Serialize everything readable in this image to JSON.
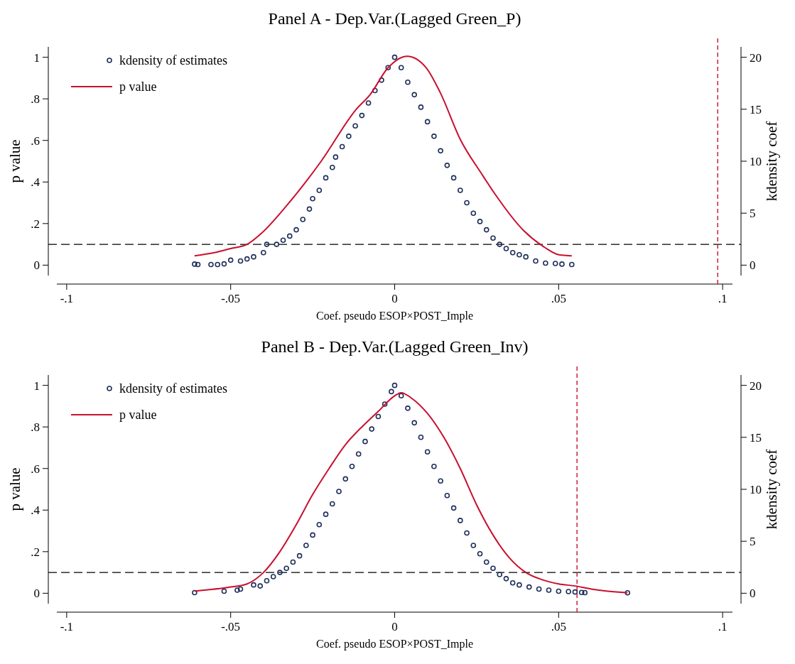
{
  "chart_data": [
    {
      "type": "scatter",
      "title": "Panel A - Dep.Var.(Lagged Green_P)",
      "xlabel": "Coef. pseudo ESOP×POST_Imple",
      "ylabel": "p value",
      "y2label": "kdensity coef",
      "xlim": [
        -0.103,
        0.103
      ],
      "xticks": [
        {
          "value": -0.1,
          "label": "-.1"
        },
        {
          "value": -0.05,
          "label": "-.05"
        },
        0,
        {
          "value": 0.05,
          "label": ".05"
        },
        {
          "value": 0.1,
          "label": ".1"
        }
      ],
      "ylim": [
        -0.05,
        1.05
      ],
      "yticks": [
        {
          "value": 0,
          "label": "0"
        },
        {
          "value": 0.2,
          "label": ".2"
        },
        {
          "value": 0.4,
          "label": ".4"
        },
        {
          "value": 0.6,
          "label": ".6"
        },
        {
          "value": 0.8,
          "label": ".8"
        },
        {
          "value": 1,
          "label": "1"
        }
      ],
      "y2lim": [
        -1,
        21
      ],
      "y2ticks": [
        {
          "value": 0,
          "label": "0"
        },
        5,
        10,
        15,
        20
      ],
      "grid": false,
      "legend": "top left",
      "series": [
        {
          "name": "kdensity of estimates",
          "color": "#1f2f5a",
          "marker": "circle",
          "x": [
            -0.061,
            -0.06,
            -0.056,
            -0.054,
            -0.052,
            -0.05,
            -0.047,
            -0.045,
            -0.043,
            -0.04,
            -0.039,
            -0.036,
            -0.034,
            -0.032,
            -0.03,
            -0.028,
            -0.026,
            -0.025,
            -0.023,
            -0.021,
            -0.019,
            -0.018,
            -0.016,
            -0.014,
            -0.012,
            -0.01,
            -0.008,
            -0.006,
            -0.004,
            -0.002,
            0,
            0.002,
            0.004,
            0.006,
            0.008,
            0.01,
            0.012,
            0.014,
            0.016,
            0.018,
            0.02,
            0.022,
            0.024,
            0.026,
            0.028,
            0.03,
            0.032,
            0.034,
            0.036,
            0.038,
            0.04,
            0.043,
            0.046,
            0.049,
            0.051,
            0.054
          ],
          "values": [
            0.005,
            0.003,
            0.003,
            0.003,
            0.006,
            0.024,
            0.02,
            0.03,
            0.04,
            0.06,
            0.1,
            0.1,
            0.12,
            0.14,
            0.17,
            0.22,
            0.27,
            0.32,
            0.36,
            0.42,
            0.47,
            0.52,
            0.57,
            0.62,
            0.67,
            0.72,
            0.78,
            0.84,
            0.89,
            0.95,
            1,
            0.95,
            0.88,
            0.82,
            0.76,
            0.69,
            0.62,
            0.55,
            0.48,
            0.42,
            0.36,
            0.3,
            0.25,
            0.21,
            0.17,
            0.13,
            0.1,
            0.08,
            0.06,
            0.05,
            0.04,
            0.02,
            0.01,
            0.008,
            0.005,
            0.003
          ]
        },
        {
          "type": "line",
          "axis": "y2",
          "name": "p value",
          "color": "#c8102e",
          "line_style": "solid",
          "x": [
            -0.061,
            -0.055,
            -0.05,
            -0.045,
            -0.0405,
            -0.033,
            -0.0224,
            -0.0117,
            -0.0075,
            -0.002,
            0.0038,
            0.0096,
            0.0139,
            0.02,
            0.0267,
            0.0309,
            0.0394,
            0.0458,
            0.0501,
            0.054
          ],
          "values": [
            0.9,
            1.2,
            1.6,
            2.0,
            3.1,
            5.7,
            10.0,
            15.0,
            16.4,
            19.0,
            20.1,
            19.0,
            16.6,
            12.1,
            8.7,
            6.7,
            3.3,
            1.7,
            1.0,
            0.9
          ]
        }
      ],
      "ref_lines": [
        {
          "axis": "y",
          "value": 0.1,
          "color": "#000000",
          "line_style": "dashed"
        },
        {
          "axis": "x",
          "value": 0.0985,
          "color": "#c8102e",
          "line_style": "dashed"
        }
      ]
    },
    {
      "type": "scatter",
      "title": "Panel B - Dep.Var.(Lagged Green_Inv)",
      "xlabel": "Coef. pseudo ESOP×POST_Imple",
      "ylabel": "p value",
      "y2label": "kdensity coef",
      "xlim": [
        -0.103,
        0.103
      ],
      "xticks": [
        {
          "value": -0.1,
          "label": "-.1"
        },
        {
          "value": -0.05,
          "label": "-.05"
        },
        0,
        {
          "value": 0.05,
          "label": ".05"
        },
        {
          "value": 0.1,
          "label": ".1"
        }
      ],
      "ylim": [
        -0.05,
        1.05
      ],
      "yticks": [
        {
          "value": 0,
          "label": "0"
        },
        {
          "value": 0.2,
          "label": ".2"
        },
        {
          "value": 0.4,
          "label": ".4"
        },
        {
          "value": 0.6,
          "label": ".6"
        },
        {
          "value": 0.8,
          "label": ".8"
        },
        {
          "value": 1,
          "label": "1"
        }
      ],
      "y2lim": [
        -1,
        21
      ],
      "y2ticks": [
        {
          "value": 0,
          "label": "0"
        },
        5,
        10,
        15,
        20
      ],
      "grid": false,
      "legend": "top left",
      "series": [
        {
          "name": "kdensity of estimates",
          "color": "#1f2f5a",
          "marker": "circle",
          "x": [
            -0.061,
            -0.052,
            -0.048,
            -0.047,
            -0.043,
            -0.041,
            -0.039,
            -0.037,
            -0.035,
            -0.033,
            -0.031,
            -0.029,
            -0.027,
            -0.025,
            -0.023,
            -0.021,
            -0.019,
            -0.017,
            -0.015,
            -0.013,
            -0.011,
            -0.009,
            -0.007,
            -0.005,
            -0.003,
            -0.001,
            0,
            0.002,
            0.004,
            0.006,
            0.008,
            0.01,
            0.012,
            0.014,
            0.016,
            0.018,
            0.02,
            0.022,
            0.024,
            0.026,
            0.028,
            0.03,
            0.032,
            0.034,
            0.036,
            0.038,
            0.041,
            0.044,
            0.047,
            0.05,
            0.053,
            0.055,
            0.057,
            0.058,
            0.071
          ],
          "values": [
            0.003,
            0.01,
            0.015,
            0.02,
            0.04,
            0.035,
            0.06,
            0.08,
            0.1,
            0.12,
            0.15,
            0.18,
            0.23,
            0.28,
            0.33,
            0.38,
            0.43,
            0.49,
            0.55,
            0.61,
            0.67,
            0.73,
            0.79,
            0.85,
            0.91,
            0.97,
            1,
            0.95,
            0.89,
            0.82,
            0.75,
            0.68,
            0.61,
            0.54,
            0.47,
            0.41,
            0.35,
            0.29,
            0.23,
            0.19,
            0.15,
            0.12,
            0.09,
            0.07,
            0.05,
            0.04,
            0.03,
            0.02,
            0.015,
            0.01,
            0.008,
            0.006,
            0.004,
            0.003,
            0.002
          ]
        },
        {
          "type": "line",
          "axis": "y2",
          "name": "p value",
          "color": "#c8102e",
          "line_style": "solid",
          "x": [
            -0.061,
            -0.05,
            -0.045,
            -0.04,
            -0.035,
            -0.03,
            -0.025,
            -0.02,
            -0.015,
            -0.01,
            -0.005,
            0,
            0.002,
            0.005,
            0.01,
            0.015,
            0.02,
            0.025,
            0.03,
            0.035,
            0.04,
            0.045,
            0.05,
            0.055,
            0.06,
            0.065,
            0.071
          ],
          "values": [
            0.2,
            0.6,
            0.9,
            2.0,
            4.0,
            6.6,
            9.5,
            12.0,
            14.3,
            16.0,
            17.5,
            19.0,
            19.3,
            18.8,
            17.3,
            15.0,
            12.0,
            8.5,
            5.6,
            3.4,
            2.0,
            1.3,
            0.9,
            0.7,
            0.4,
            0.2,
            0.05
          ]
        }
      ],
      "ref_lines": [
        {
          "axis": "y",
          "value": 0.1,
          "color": "#000000",
          "line_style": "dashed"
        },
        {
          "axis": "x",
          "value": 0.0556,
          "color": "#c8102e",
          "line_style": "dashed"
        }
      ]
    }
  ]
}
